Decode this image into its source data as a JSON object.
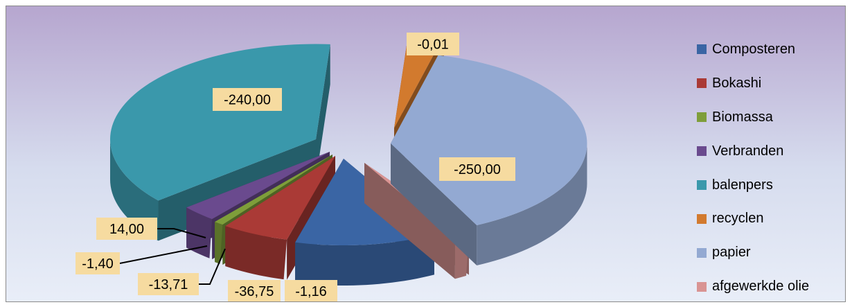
{
  "chart_data": {
    "type": "pie",
    "categories": [
      "Composteren",
      "Bokashi",
      "Biomassa",
      "Verbranden",
      "balenpers",
      "recyclen",
      "papier",
      "afgewerkde olie"
    ],
    "values": [
      -36.75,
      -13.71,
      -1.4,
      14.0,
      -240.0,
      -0.01,
      -250.0,
      -1.16
    ],
    "data_labels": [
      "-36,75",
      "-13,71",
      "-1,40",
      "14,00",
      "-240,00",
      "-0,01",
      "-250,00",
      "-1,16"
    ],
    "colors": [
      "#3a65a4",
      "#aa3a36",
      "#7e9e3a",
      "#6a4a8e",
      "#3a98ab",
      "#d27a2e",
      "#93a9d2",
      "#d99493"
    ],
    "exploded": true,
    "style": "3d",
    "legend_position": "right"
  }
}
